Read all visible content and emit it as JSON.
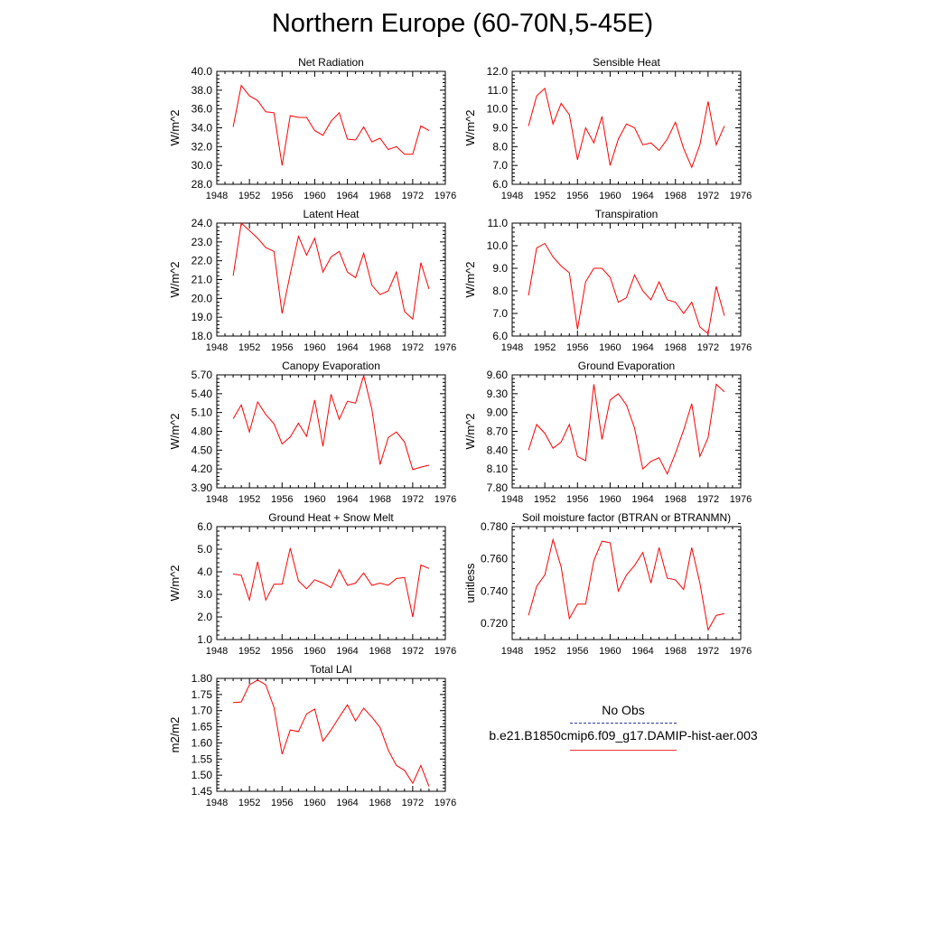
{
  "title": "Northern Europe (60-70N,5-45E)",
  "colors": {
    "model": "#ff0000",
    "obs": "#3333aa",
    "axis": "#000000"
  },
  "legend": {
    "obs_label": "No Obs",
    "model_label": "b.e21.B1850cmip6.f09_g17.DAMIP-hist-aer.003"
  },
  "chart_data": [
    {
      "type": "line",
      "title": "Net Radiation",
      "ylabel": "W/m^2",
      "xlim": [
        1948,
        1976
      ],
      "ylim": [
        28,
        40
      ],
      "xticks": [
        1948,
        1952,
        1956,
        1960,
        1964,
        1968,
        1972,
        1976
      ],
      "xtick_labels": [
        "1948",
        "1952",
        "1956",
        "1960",
        "1964",
        "1968",
        "1972",
        "1976"
      ],
      "yticks": [
        28,
        30,
        32,
        34,
        36,
        38,
        40
      ],
      "ytick_labels": [
        "28.0",
        "30.0",
        "32.0",
        "34.0",
        "36.0",
        "38.0",
        "40.0"
      ],
      "x": [
        1950,
        1951,
        1952,
        1953,
        1954,
        1955,
        1956,
        1957,
        1958,
        1959,
        1960,
        1961,
        1962,
        1963,
        1964,
        1965,
        1966,
        1967,
        1968,
        1969,
        1970,
        1971,
        1972,
        1973,
        1974
      ],
      "series": [
        {
          "name": "b.e21.B1850cmip6.f09_g17.DAMIP-hist-aer.003",
          "values": [
            34.1,
            38.5,
            37.4,
            36.9,
            35.7,
            35.6,
            30.0,
            35.3,
            35.1,
            35.1,
            33.7,
            33.2,
            34.7,
            35.6,
            32.8,
            32.7,
            34.1,
            32.5,
            32.9,
            31.7,
            32.0,
            31.2,
            31.2,
            34.2,
            33.7
          ]
        }
      ]
    },
    {
      "type": "line",
      "title": "Sensible Heat",
      "ylabel": "W/m^2",
      "xlim": [
        1948,
        1976
      ],
      "ylim": [
        6,
        12
      ],
      "xticks": [
        1948,
        1952,
        1956,
        1960,
        1964,
        1968,
        1972,
        1976
      ],
      "xtick_labels": [
        "1948",
        "1952",
        "1956",
        "1960",
        "1964",
        "1968",
        "1972",
        "1976"
      ],
      "yticks": [
        6,
        7,
        8,
        9,
        10,
        11,
        12
      ],
      "ytick_labels": [
        "6.0",
        "7.0",
        "8.0",
        "9.0",
        "10.0",
        "11.0",
        "12.0"
      ],
      "x": [
        1950,
        1951,
        1952,
        1953,
        1954,
        1955,
        1956,
        1957,
        1958,
        1959,
        1960,
        1961,
        1962,
        1963,
        1964,
        1965,
        1966,
        1967,
        1968,
        1969,
        1970,
        1971,
        1972,
        1973,
        1974
      ],
      "series": [
        {
          "name": "b.e21.B1850cmip6.f09_g17.DAMIP-hist-aer.003",
          "values": [
            9.1,
            10.7,
            11.1,
            9.2,
            10.3,
            9.7,
            7.3,
            9.0,
            8.2,
            9.6,
            7.0,
            8.4,
            9.2,
            9.0,
            8.1,
            8.2,
            7.8,
            8.4,
            9.3,
            7.9,
            6.9,
            8.1,
            10.4,
            8.1,
            9.1
          ]
        }
      ]
    },
    {
      "type": "line",
      "title": "Latent Heat",
      "ylabel": "W/m^2",
      "xlim": [
        1948,
        1976
      ],
      "ylim": [
        18,
        24
      ],
      "xticks": [
        1948,
        1952,
        1956,
        1960,
        1964,
        1968,
        1972,
        1976
      ],
      "xtick_labels": [
        "1948",
        "1952",
        "1956",
        "1960",
        "1964",
        "1968",
        "1972",
        "1976"
      ],
      "yticks": [
        18,
        19,
        20,
        21,
        22,
        23,
        24
      ],
      "ytick_labels": [
        "18.0",
        "19.0",
        "20.0",
        "21.0",
        "22.0",
        "23.0",
        "24.0"
      ],
      "x": [
        1950,
        1951,
        1952,
        1953,
        1954,
        1955,
        1956,
        1957,
        1958,
        1959,
        1960,
        1961,
        1962,
        1963,
        1964,
        1965,
        1966,
        1967,
        1968,
        1969,
        1970,
        1971,
        1972,
        1973,
        1974
      ],
      "series": [
        {
          "name": "b.e21.B1850cmip6.f09_g17.DAMIP-hist-aer.003",
          "values": [
            21.2,
            24.0,
            23.6,
            23.2,
            22.7,
            22.5,
            19.2,
            21.3,
            23.3,
            22.3,
            23.2,
            21.4,
            22.2,
            22.5,
            21.4,
            21.1,
            22.4,
            20.7,
            20.2,
            20.4,
            21.4,
            19.3,
            18.9,
            21.9,
            20.5
          ]
        }
      ]
    },
    {
      "type": "line",
      "title": "Transpiration",
      "ylabel": "W/m^2",
      "xlim": [
        1948,
        1976
      ],
      "ylim": [
        6,
        11
      ],
      "xticks": [
        1948,
        1952,
        1956,
        1960,
        1964,
        1968,
        1972,
        1976
      ],
      "xtick_labels": [
        "1948",
        "1952",
        "1956",
        "1960",
        "1964",
        "1968",
        "1972",
        "1976"
      ],
      "yticks": [
        6,
        7,
        8,
        9,
        10,
        11
      ],
      "ytick_labels": [
        "6.0",
        "7.0",
        "8.0",
        "9.0",
        "10.0",
        "11.0"
      ],
      "x": [
        1950,
        1951,
        1952,
        1953,
        1954,
        1955,
        1956,
        1957,
        1958,
        1959,
        1960,
        1961,
        1962,
        1963,
        1964,
        1965,
        1966,
        1967,
        1968,
        1969,
        1970,
        1971,
        1972,
        1973,
        1974
      ],
      "series": [
        {
          "name": "b.e21.B1850cmip6.f09_g17.DAMIP-hist-aer.003",
          "values": [
            7.8,
            9.9,
            10.1,
            9.5,
            9.1,
            8.8,
            6.3,
            8.4,
            9.0,
            9.0,
            8.6,
            7.5,
            7.7,
            8.7,
            8.0,
            7.6,
            8.4,
            7.6,
            7.5,
            7.0,
            7.5,
            6.4,
            6.1,
            8.2,
            6.9
          ]
        }
      ]
    },
    {
      "type": "line",
      "title": "Canopy Evaporation",
      "ylabel": "W/m^2",
      "xlim": [
        1948,
        1976
      ],
      "ylim": [
        3.9,
        5.7
      ],
      "xticks": [
        1948,
        1952,
        1956,
        1960,
        1964,
        1968,
        1972,
        1976
      ],
      "xtick_labels": [
        "1948",
        "1952",
        "1956",
        "1960",
        "1964",
        "1968",
        "1972",
        "1976"
      ],
      "yticks": [
        3.9,
        4.2,
        4.5,
        4.8,
        5.1,
        5.4,
        5.7
      ],
      "ytick_labels": [
        "3.90",
        "4.20",
        "4.50",
        "4.80",
        "5.10",
        "5.40",
        "5.70"
      ],
      "x": [
        1950,
        1951,
        1952,
        1953,
        1954,
        1955,
        1956,
        1957,
        1958,
        1959,
        1960,
        1961,
        1962,
        1963,
        1964,
        1965,
        1966,
        1967,
        1968,
        1969,
        1970,
        1971,
        1972,
        1973,
        1974
      ],
      "series": [
        {
          "name": "b.e21.B1850cmip6.f09_g17.DAMIP-hist-aer.003",
          "values": [
            5.0,
            5.22,
            4.79,
            5.27,
            5.07,
            4.92,
            4.6,
            4.71,
            4.93,
            4.72,
            5.3,
            4.56,
            5.39,
            4.99,
            5.28,
            5.25,
            5.69,
            5.15,
            4.27,
            4.7,
            4.79,
            4.63,
            4.19,
            4.23,
            4.26
          ]
        }
      ]
    },
    {
      "type": "line",
      "title": "Ground Evaporation",
      "ylabel": "W/m^2",
      "xlim": [
        1948,
        1976
      ],
      "ylim": [
        7.8,
        9.6
      ],
      "xticks": [
        1948,
        1952,
        1956,
        1960,
        1964,
        1968,
        1972,
        1976
      ],
      "xtick_labels": [
        "1948",
        "1952",
        "1956",
        "1960",
        "1964",
        "1968",
        "1972",
        "1976"
      ],
      "yticks": [
        7.8,
        8.1,
        8.4,
        8.7,
        9.0,
        9.3,
        9.6
      ],
      "ytick_labels": [
        "7.80",
        "8.10",
        "8.40",
        "8.70",
        "9.00",
        "9.30",
        "9.60"
      ],
      "x": [
        1950,
        1951,
        1952,
        1953,
        1954,
        1955,
        1956,
        1957,
        1958,
        1959,
        1960,
        1961,
        1962,
        1963,
        1964,
        1965,
        1966,
        1967,
        1968,
        1969,
        1970,
        1971,
        1972,
        1973,
        1974
      ],
      "series": [
        {
          "name": "b.e21.B1850cmip6.f09_g17.DAMIP-hist-aer.003",
          "values": [
            8.4,
            8.81,
            8.67,
            8.43,
            8.53,
            8.81,
            8.3,
            8.23,
            9.45,
            8.57,
            9.2,
            9.3,
            9.12,
            8.75,
            8.1,
            8.22,
            8.28,
            8.02,
            8.35,
            8.72,
            9.14,
            8.3,
            8.6,
            9.45,
            9.33
          ]
        }
      ]
    },
    {
      "type": "line",
      "title": "Ground Heat + Snow Melt",
      "ylabel": "W/m^2",
      "xlim": [
        1948,
        1976
      ],
      "ylim": [
        1,
        6
      ],
      "xticks": [
        1948,
        1952,
        1956,
        1960,
        1964,
        1968,
        1972,
        1976
      ],
      "xtick_labels": [
        "1948",
        "1952",
        "1956",
        "1960",
        "1964",
        "1968",
        "1972",
        "1976"
      ],
      "yticks": [
        1,
        2,
        3,
        4,
        5,
        6
      ],
      "ytick_labels": [
        "1.0",
        "2.0",
        "3.0",
        "4.0",
        "5.0",
        "6.0"
      ],
      "x": [
        1950,
        1951,
        1952,
        1953,
        1954,
        1955,
        1956,
        1957,
        1958,
        1959,
        1960,
        1961,
        1962,
        1963,
        1964,
        1965,
        1966,
        1967,
        1968,
        1969,
        1970,
        1971,
        1972,
        1973,
        1974
      ],
      "series": [
        {
          "name": "b.e21.B1850cmip6.f09_g17.DAMIP-hist-aer.003",
          "values": [
            3.9,
            3.85,
            2.75,
            4.45,
            2.75,
            3.45,
            3.45,
            5.05,
            3.6,
            3.25,
            3.65,
            3.5,
            3.3,
            4.1,
            3.4,
            3.5,
            3.95,
            3.4,
            3.5,
            3.4,
            3.7,
            3.75,
            2.0,
            4.3,
            4.15
          ]
        }
      ]
    },
    {
      "type": "line",
      "title": "Soil moisture factor (BTRAN or BTRANMN)",
      "ylabel": "unitless",
      "xlim": [
        1948,
        1976
      ],
      "ylim": [
        0.71,
        0.78
      ],
      "xticks": [
        1948,
        1952,
        1956,
        1960,
        1964,
        1968,
        1972,
        1976
      ],
      "xtick_labels": [
        "1948",
        "1952",
        "1956",
        "1960",
        "1964",
        "1968",
        "1972",
        "1976"
      ],
      "yticks": [
        0.72,
        0.74,
        0.76,
        0.78
      ],
      "ytick_labels": [
        "0.720",
        "0.740",
        "0.760",
        "0.780"
      ],
      "x": [
        1950,
        1951,
        1952,
        1953,
        1954,
        1955,
        1956,
        1957,
        1958,
        1959,
        1960,
        1961,
        1962,
        1963,
        1964,
        1965,
        1966,
        1967,
        1968,
        1969,
        1970,
        1971,
        1972,
        1973,
        1974
      ],
      "series": [
        {
          "name": "b.e21.B1850cmip6.f09_g17.DAMIP-hist-aer.003",
          "values": [
            0.725,
            0.743,
            0.75,
            0.772,
            0.755,
            0.723,
            0.732,
            0.732,
            0.759,
            0.771,
            0.77,
            0.74,
            0.75,
            0.756,
            0.764,
            0.745,
            0.767,
            0.748,
            0.747,
            0.741,
            0.767,
            0.745,
            0.716,
            0.725,
            0.726
          ]
        }
      ]
    },
    {
      "type": "line",
      "title": "Total LAI",
      "ylabel": "m2/m2",
      "xlim": [
        1948,
        1976
      ],
      "ylim": [
        1.45,
        1.8
      ],
      "xticks": [
        1948,
        1952,
        1956,
        1960,
        1964,
        1968,
        1972,
        1976
      ],
      "xtick_labels": [
        "1948",
        "1952",
        "1956",
        "1960",
        "1964",
        "1968",
        "1972",
        "1976"
      ],
      "yticks": [
        1.45,
        1.5,
        1.55,
        1.6,
        1.65,
        1.7,
        1.75,
        1.8
      ],
      "ytick_labels": [
        "1.45",
        "1.50",
        "1.55",
        "1.60",
        "1.65",
        "1.70",
        "1.75",
        "1.80"
      ],
      "x": [
        1950,
        1951,
        1952,
        1953,
        1954,
        1955,
        1956,
        1957,
        1958,
        1959,
        1960,
        1961,
        1962,
        1963,
        1964,
        1965,
        1966,
        1967,
        1968,
        1969,
        1970,
        1971,
        1972,
        1973,
        1974
      ],
      "series": [
        {
          "name": "b.e21.B1850cmip6.f09_g17.DAMIP-hist-aer.003",
          "values": [
            1.725,
            1.727,
            1.78,
            1.795,
            1.78,
            1.71,
            1.565,
            1.64,
            1.635,
            1.69,
            1.705,
            1.605,
            1.64,
            1.68,
            1.718,
            1.668,
            1.708,
            1.68,
            1.648,
            1.578,
            1.53,
            1.515,
            1.475,
            1.53,
            1.465
          ]
        }
      ]
    }
  ]
}
